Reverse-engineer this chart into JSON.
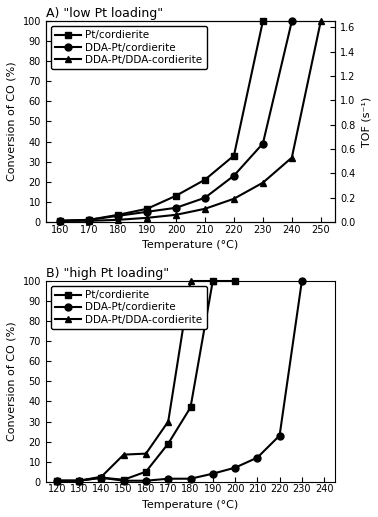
{
  "panel_A": {
    "title": "A) \"low Pt loading\"",
    "xlabel": "Temperature (°C)",
    "ylabel_left": "Conversion of CO (%)",
    "ylabel_right": "TOF (s⁻¹)",
    "xlim": [
      155,
      255
    ],
    "xticks": [
      160,
      170,
      180,
      190,
      200,
      210,
      220,
      230,
      240,
      250
    ],
    "ylim_left": [
      0,
      100
    ],
    "ylim_right": [
      0,
      1.65
    ],
    "yticks_left": [
      0,
      10,
      20,
      30,
      40,
      50,
      60,
      70,
      80,
      90,
      100
    ],
    "yticks_right": [
      0.0,
      0.2,
      0.4,
      0.6,
      0.8,
      1.0,
      1.2,
      1.4,
      1.6
    ],
    "series": [
      {
        "label": "Pt/cordierite",
        "marker": "s",
        "x": [
          160,
          170,
          180,
          190,
          200,
          210,
          220,
          230
        ],
        "y": [
          0.5,
          1.0,
          3.5,
          6.5,
          13.0,
          21.0,
          33.0,
          100.0
        ]
      },
      {
        "label": "DDA-Pt/cordierite",
        "marker": "o",
        "x": [
          160,
          170,
          180,
          190,
          200,
          210,
          220,
          230,
          240
        ],
        "y": [
          0.5,
          1.0,
          3.0,
          5.0,
          7.0,
          12.0,
          23.0,
          39.0,
          100.0
        ]
      },
      {
        "label": "DDA-Pt/DDA-cordierite",
        "marker": "^",
        "x": [
          160,
          170,
          180,
          190,
          200,
          210,
          220,
          230,
          240,
          250
        ],
        "y": [
          0.5,
          0.5,
          1.0,
          2.0,
          3.5,
          6.5,
          11.5,
          19.5,
          32.0,
          100.0
        ]
      }
    ]
  },
  "panel_B": {
    "title": "B) \"high Pt loading\"",
    "xlabel": "Temperature (°C)",
    "ylabel_left": "Conversion of CO (%)",
    "xlim": [
      115,
      245
    ],
    "xticks": [
      120,
      130,
      140,
      150,
      160,
      170,
      180,
      190,
      200,
      210,
      220,
      230,
      240
    ],
    "ylim_left": [
      0,
      100
    ],
    "yticks_left": [
      0,
      10,
      20,
      30,
      40,
      50,
      60,
      70,
      80,
      90,
      100
    ],
    "series": [
      {
        "label": "Pt/cordierite",
        "marker": "s",
        "x": [
          120,
          130,
          140,
          150,
          160,
          170,
          180,
          190,
          200
        ],
        "y": [
          0.5,
          0.5,
          2.0,
          1.0,
          5.0,
          19.0,
          37.0,
          100.0,
          100.0
        ]
      },
      {
        "label": "DDA-Pt/cordierite",
        "marker": "o",
        "x": [
          120,
          130,
          140,
          150,
          160,
          170,
          180,
          190,
          200,
          210,
          220,
          230
        ],
        "y": [
          0.5,
          0.5,
          2.0,
          0.5,
          0.5,
          1.5,
          1.5,
          4.0,
          7.0,
          12.0,
          23.0,
          100.0
        ]
      },
      {
        "label": "DDA-Pt/DDA-cordierite",
        "marker": "^",
        "x": [
          120,
          130,
          140,
          150,
          160,
          170,
          180,
          190
        ],
        "y": [
          0.5,
          0.5,
          2.5,
          13.5,
          14.0,
          30.0,
          100.0,
          100.0
        ]
      }
    ]
  },
  "line_color": "#000000",
  "marker_size": 5,
  "linewidth": 1.5,
  "font_size_title": 9,
  "font_size_label": 8,
  "font_size_tick": 7,
  "font_size_legend": 7.5
}
